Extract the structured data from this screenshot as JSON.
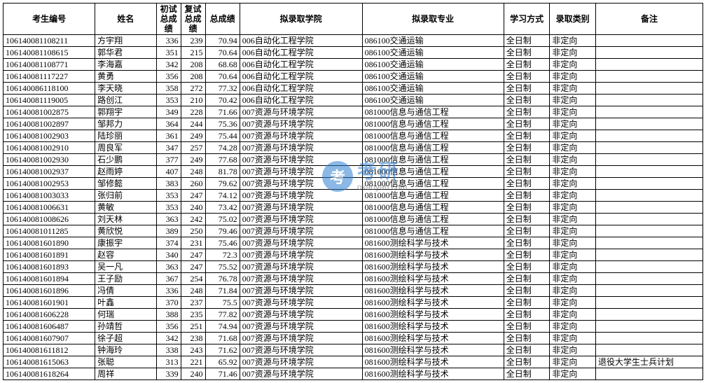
{
  "watermark": {
    "cn": "考研",
    "en": "okaoyan.com",
    "logo": "考"
  },
  "table": {
    "headers": [
      "考生编号",
      "姓名",
      "初试总成绩",
      "复试总成绩",
      "总成绩",
      "拟录取学院",
      "拟录取专业",
      "学习方式",
      "录取类别",
      "备注"
    ],
    "col_classes": [
      "c-id",
      "c-name",
      "c-s1",
      "c-s2",
      "c-total",
      "c-col",
      "c-major",
      "c-mode",
      "c-type",
      "c-note"
    ],
    "num_cols": [
      2,
      3,
      4
    ],
    "rows": [
      [
        "106140081108211",
        "方宇翔",
        "336",
        "239",
        "70.94",
        "006自动化工程学院",
        "086100交通运输",
        "全日制",
        "非定向",
        ""
      ],
      [
        "106140081108615",
        "郭华君",
        "351",
        "215",
        "70.64",
        "006自动化工程学院",
        "086100交通运输",
        "全日制",
        "非定向",
        ""
      ],
      [
        "106140081108771",
        "李海嘉",
        "342",
        "208",
        "68.68",
        "006自动化工程学院",
        "086100交通运输",
        "全日制",
        "非定向",
        ""
      ],
      [
        "106140081117227",
        "黄勇",
        "356",
        "208",
        "70.64",
        "006自动化工程学院",
        "086100交通运输",
        "全日制",
        "非定向",
        ""
      ],
      [
        "106140086118100",
        "李天晓",
        "358",
        "272",
        "77.32",
        "006自动化工程学院",
        "086100交通运输",
        "全日制",
        "非定向",
        ""
      ],
      [
        "106140081119005",
        "路创江",
        "353",
        "210",
        "70.42",
        "006自动化工程学院",
        "086100交通运输",
        "全日制",
        "非定向",
        ""
      ],
      [
        "106140081002875",
        "郭翔宇",
        "349",
        "228",
        "71.66",
        "007资源与环境学院",
        "081000信息与通信工程",
        "全日制",
        "非定向",
        ""
      ],
      [
        "106140081002897",
        "邹邦力",
        "364",
        "244",
        "75.36",
        "007资源与环境学院",
        "081000信息与通信工程",
        "全日制",
        "非定向",
        ""
      ],
      [
        "106140081002903",
        "陆珍丽",
        "361",
        "249",
        "75.44",
        "007资源与环境学院",
        "081000信息与通信工程",
        "全日制",
        "非定向",
        ""
      ],
      [
        "106140081002910",
        "周良军",
        "347",
        "257",
        "74.28",
        "007资源与环境学院",
        "081000信息与通信工程",
        "全日制",
        "非定向",
        ""
      ],
      [
        "106140081002930",
        "石少鹏",
        "377",
        "249",
        "77.68",
        "007资源与环境学院",
        "081000信息与通信工程",
        "全日制",
        "非定向",
        ""
      ],
      [
        "106140081002937",
        "赵雨婷",
        "407",
        "248",
        "81.78",
        "007资源与环境学院",
        "081000信息与通信工程",
        "全日制",
        "非定向",
        ""
      ],
      [
        "106140081002953",
        "邹修懿",
        "383",
        "260",
        "79.62",
        "007资源与环境学院",
        "081000信息与通信工程",
        "全日制",
        "非定向",
        ""
      ],
      [
        "106140081003033",
        "张归前",
        "353",
        "247",
        "74.12",
        "007资源与环境学院",
        "081000信息与通信工程",
        "全日制",
        "非定向",
        ""
      ],
      [
        "106140081006631",
        "黄敏",
        "353",
        "240",
        "73.42",
        "007资源与环境学院",
        "081000信息与通信工程",
        "全日制",
        "非定向",
        ""
      ],
      [
        "106140081008626",
        "刘天林",
        "363",
        "242",
        "75.02",
        "007资源与环境学院",
        "081000信息与通信工程",
        "全日制",
        "非定向",
        ""
      ],
      [
        "106140081011285",
        "黄欣悦",
        "389",
        "250",
        "79.46",
        "007资源与环境学院",
        "081000信息与通信工程",
        "全日制",
        "非定向",
        ""
      ],
      [
        "106140081601890",
        "康振宇",
        "374",
        "231",
        "75.46",
        "007资源与环境学院",
        "081600测绘科学与技术",
        "全日制",
        "非定向",
        ""
      ],
      [
        "106140081601891",
        "赵容",
        "340",
        "247",
        "72.3",
        "007资源与环境学院",
        "081600测绘科学与技术",
        "全日制",
        "非定向",
        ""
      ],
      [
        "106140081601893",
        "吴一凡",
        "363",
        "247",
        "75.52",
        "007资源与环境学院",
        "081600测绘科学与技术",
        "全日制",
        "非定向",
        ""
      ],
      [
        "106140081601894",
        "王子励",
        "367",
        "254",
        "76.78",
        "007资源与环境学院",
        "081600测绘科学与技术",
        "全日制",
        "非定向",
        ""
      ],
      [
        "106140081601896",
        "冯倩",
        "336",
        "248",
        "71.84",
        "007资源与环境学院",
        "081600测绘科学与技术",
        "全日制",
        "非定向",
        ""
      ],
      [
        "106140081601901",
        "叶鑫",
        "370",
        "237",
        "75.5",
        "007资源与环境学院",
        "081600测绘科学与技术",
        "全日制",
        "非定向",
        ""
      ],
      [
        "106140081606228",
        "何瑞",
        "388",
        "235",
        "77.82",
        "007资源与环境学院",
        "081600测绘科学与技术",
        "全日制",
        "非定向",
        ""
      ],
      [
        "106140081606487",
        "孙靖哲",
        "356",
        "251",
        "74.94",
        "007资源与环境学院",
        "081600测绘科学与技术",
        "全日制",
        "非定向",
        ""
      ],
      [
        "106140081607907",
        "徐子超",
        "342",
        "238",
        "71.68",
        "007资源与环境学院",
        "081600测绘科学与技术",
        "全日制",
        "非定向",
        ""
      ],
      [
        "106140081611812",
        "钟海玲",
        "338",
        "243",
        "71.62",
        "007资源与环境学院",
        "081600测绘科学与技术",
        "全日制",
        "非定向",
        ""
      ],
      [
        "106140081615063",
        "张聪",
        "313",
        "221",
        "65.92",
        "007资源与环境学院",
        "081600测绘科学与技术",
        "全日制",
        "非定向",
        "退役大学生士兵计划"
      ],
      [
        "106140081618264",
        "周祥",
        "339",
        "240",
        "71.46",
        "007资源与环境学院",
        "081600测绘科学与技术",
        "全日制",
        "非定向",
        ""
      ]
    ]
  }
}
